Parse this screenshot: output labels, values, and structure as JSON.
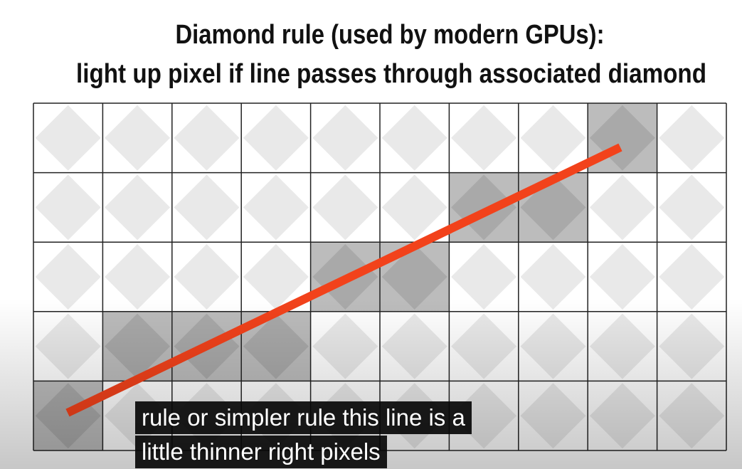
{
  "header": {
    "title_lines": [
      "Diamond rule (used by modern GPUs):",
      "light up pixel if line passes through associated diamond"
    ]
  },
  "captions": [
    "rule or simpler rule this line is a",
    "little thinner right pixels"
  ]
}
